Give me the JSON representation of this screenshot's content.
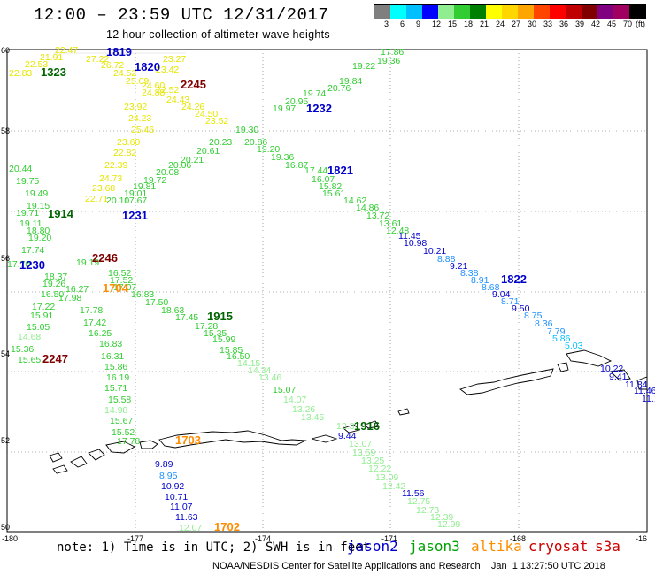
{
  "header": {
    "title": "12:00 – 23:59 UTC 12/31/2017",
    "subtitle": "12 hour collection of altimeter wave heights"
  },
  "color_scale": {
    "colors": [
      "#7f7f7f",
      "#00ffff",
      "#00bfff",
      "#0000ff",
      "#90ee90",
      "#32cd32",
      "#008000",
      "#ffff00",
      "#ffd700",
      "#ffa500",
      "#ff4500",
      "#ff0000",
      "#c00000",
      "#800000",
      "#800080",
      "#a00060",
      "#000000"
    ],
    "labels": [
      "3",
      "6",
      "9",
      "12",
      "15",
      "18",
      "21",
      "24",
      "27",
      "30",
      "33",
      "36",
      "39",
      "42",
      "45",
      "70",
      "(ft)"
    ]
  },
  "axes": {
    "y_labels": [
      "60",
      "58",
      "56",
      "54",
      "52",
      "50"
    ],
    "x_labels": [
      "-180",
      "-177",
      "-174",
      "-171",
      "-168",
      "-16"
    ]
  },
  "track_times": [
    {
      "text": "1819",
      "color": "#0000cc"
    },
    {
      "text": "1820",
      "color": "#0000cc"
    },
    {
      "text": "1323",
      "color": "#006400"
    },
    {
      "text": "2245",
      "color": "#800000"
    },
    {
      "text": "1232",
      "color": "#0000cc"
    },
    {
      "text": "1821",
      "color": "#0000cc"
    },
    {
      "text": "1914",
      "color": "#006400"
    },
    {
      "text": "1231",
      "color": "#0000cc"
    },
    {
      "text": "2246",
      "color": "#800000"
    },
    {
      "text": "1230",
      "color": "#0000cc"
    },
    {
      "text": "1704",
      "color": "#ff8c00"
    },
    {
      "text": "1822",
      "color": "#0000cc"
    },
    {
      "text": "1915",
      "color": "#006400"
    },
    {
      "text": "2247",
      "color": "#800000"
    },
    {
      "text": "1916",
      "color": "#006400"
    },
    {
      "text": "1703",
      "color": "#ff8c00"
    },
    {
      "text": "1702",
      "color": "#ff8c00"
    }
  ],
  "wave_values": [
    {
      "v": "22.47",
      "c": "#e6e600"
    },
    {
      "v": "21.91",
      "c": "#e6e600"
    },
    {
      "v": "22.53",
      "c": "#e6e600"
    },
    {
      "v": "22.83",
      "c": "#e6e600"
    },
    {
      "v": "27.22",
      "c": "#e6e600"
    },
    {
      "v": "26.72",
      "c": "#e6e600"
    },
    {
      "v": "24.52",
      "c": "#e6e600"
    },
    {
      "v": "25.09",
      "c": "#e6e600"
    },
    {
      "v": "24.60",
      "c": "#e6e600"
    },
    {
      "v": "24.88",
      "c": "#e6e600"
    },
    {
      "v": "22.52",
      "c": "#e6e600"
    },
    {
      "v": "23.42",
      "c": "#e6e600"
    },
    {
      "v": "23.27",
      "c": "#e6e600"
    },
    {
      "v": "24.43",
      "c": "#e6e600"
    },
    {
      "v": "23.92",
      "c": "#e6e600"
    },
    {
      "v": "24.26",
      "c": "#e6e600"
    },
    {
      "v": "24.50",
      "c": "#e6e600"
    },
    {
      "v": "24.23",
      "c": "#e6e600"
    },
    {
      "v": "23.52",
      "c": "#e6e600"
    },
    {
      "v": "25.46",
      "c": "#e6e600"
    },
    {
      "v": "23.60",
      "c": "#e6e600"
    },
    {
      "v": "22.82",
      "c": "#e6e600"
    },
    {
      "v": "22.39",
      "c": "#e6e600"
    },
    {
      "v": "24.73",
      "c": "#e6e600"
    },
    {
      "v": "23.68",
      "c": "#e6e600"
    },
    {
      "v": "22.71",
      "c": "#e6e600"
    },
    {
      "v": "17.86",
      "c": "#32cd32"
    },
    {
      "v": "19.36",
      "c": "#32cd32"
    },
    {
      "v": "19.22",
      "c": "#32cd32"
    },
    {
      "v": "19.84",
      "c": "#32cd32"
    },
    {
      "v": "20.76",
      "c": "#32cd32"
    },
    {
      "v": "19.74",
      "c": "#32cd32"
    },
    {
      "v": "20.95",
      "c": "#32cd32"
    },
    {
      "v": "19.97",
      "c": "#32cd32"
    },
    {
      "v": "19.30",
      "c": "#32cd32"
    },
    {
      "v": "20.23",
      "c": "#32cd32"
    },
    {
      "v": "20.86",
      "c": "#32cd32"
    },
    {
      "v": "20.61",
      "c": "#32cd32"
    },
    {
      "v": "19.20",
      "c": "#32cd32"
    },
    {
      "v": "20.21",
      "c": "#32cd32"
    },
    {
      "v": "20.06",
      "c": "#32cd32"
    },
    {
      "v": "19.36",
      "c": "#32cd32"
    },
    {
      "v": "20.08",
      "c": "#32cd32"
    },
    {
      "v": "16.87",
      "c": "#32cd32"
    },
    {
      "v": "19.72",
      "c": "#32cd32"
    },
    {
      "v": "17.44",
      "c": "#32cd32"
    },
    {
      "v": "19.81",
      "c": "#32cd32"
    },
    {
      "v": "16.07",
      "c": "#32cd32"
    },
    {
      "v": "15.82",
      "c": "#32cd32"
    },
    {
      "v": "19.01",
      "c": "#32cd32"
    },
    {
      "v": "15.61",
      "c": "#32cd32"
    },
    {
      "v": "20.10",
      "c": "#32cd32"
    },
    {
      "v": "17.67",
      "c": "#32cd32"
    },
    {
      "v": "14.62",
      "c": "#32cd32"
    },
    {
      "v": "14.86",
      "c": "#32cd32"
    },
    {
      "v": "13.72",
      "c": "#32cd32"
    },
    {
      "v": "13.61",
      "c": "#32cd32"
    },
    {
      "v": "12.48",
      "c": "#32cd32"
    },
    {
      "v": "20.44",
      "c": "#32cd32"
    },
    {
      "v": "19.75",
      "c": "#32cd32"
    },
    {
      "v": "19.49",
      "c": "#32cd32"
    },
    {
      "v": "19.15",
      "c": "#32cd32"
    },
    {
      "v": "19.71",
      "c": "#32cd32"
    },
    {
      "v": "19.11",
      "c": "#32cd32"
    },
    {
      "v": "18.80",
      "c": "#32cd32"
    },
    {
      "v": "19.20",
      "c": "#32cd32"
    },
    {
      "v": "17.74",
      "c": "#32cd32"
    },
    {
      "v": "17.70",
      "c": "#32cd32"
    },
    {
      "v": "19.19",
      "c": "#32cd32"
    },
    {
      "v": "18.37",
      "c": "#32cd32"
    },
    {
      "v": "19.26",
      "c": "#32cd32"
    },
    {
      "v": "16.52",
      "c": "#32cd32"
    },
    {
      "v": "17.52",
      "c": "#32cd32"
    },
    {
      "v": "16.27",
      "c": "#32cd32"
    },
    {
      "v": "16.50",
      "c": "#32cd32"
    },
    {
      "v": "17.07",
      "c": "#32cd32"
    },
    {
      "v": "16.83",
      "c": "#32cd32"
    },
    {
      "v": "17.22",
      "c": "#32cd32"
    },
    {
      "v": "17.98",
      "c": "#32cd32"
    },
    {
      "v": "17.50",
      "c": "#32cd32"
    },
    {
      "v": "15.91",
      "c": "#32cd32"
    },
    {
      "v": "17.78",
      "c": "#32cd32"
    },
    {
      "v": "18.63",
      "c": "#32cd32"
    },
    {
      "v": "15.05",
      "c": "#32cd32"
    },
    {
      "v": "17.42",
      "c": "#32cd32"
    },
    {
      "v": "17.45",
      "c": "#32cd32"
    },
    {
      "v": "14.68",
      "c": "#90ee90"
    },
    {
      "v": "17.28",
      "c": "#32cd32"
    },
    {
      "v": "16.25",
      "c": "#32cd32"
    },
    {
      "v": "15.35",
      "c": "#32cd32"
    },
    {
      "v": "15.36",
      "c": "#32cd32"
    },
    {
      "v": "16.83",
      "c": "#32cd32"
    },
    {
      "v": "15.99",
      "c": "#32cd32"
    },
    {
      "v": "15.65",
      "c": "#32cd32"
    },
    {
      "v": "16.31",
      "c": "#32cd32"
    },
    {
      "v": "15.85",
      "c": "#32cd32"
    },
    {
      "v": "16.50",
      "c": "#32cd32"
    },
    {
      "v": "14.15",
      "c": "#90ee90"
    },
    {
      "v": "15.86",
      "c": "#32cd32"
    },
    {
      "v": "14.34",
      "c": "#90ee90"
    },
    {
      "v": "16.19",
      "c": "#32cd32"
    },
    {
      "v": "13.46",
      "c": "#90ee90"
    },
    {
      "v": "15.71",
      "c": "#32cd32"
    },
    {
      "v": "15.07",
      "c": "#32cd32"
    },
    {
      "v": "15.58",
      "c": "#32cd32"
    },
    {
      "v": "14.07",
      "c": "#90ee90"
    },
    {
      "v": "14.98",
      "c": "#90ee90"
    },
    {
      "v": "13.26",
      "c": "#90ee90"
    },
    {
      "v": "15.67",
      "c": "#32cd32"
    },
    {
      "v": "13.45",
      "c": "#90ee90"
    },
    {
      "v": "15.52",
      "c": "#32cd32"
    },
    {
      "v": "12.37",
      "c": "#90ee90"
    },
    {
      "v": "17.78",
      "c": "#32cd32"
    },
    {
      "v": "9.44",
      "c": "#0000cd"
    },
    {
      "v": "13.07",
      "c": "#90ee90"
    },
    {
      "v": "13.59",
      "c": "#90ee90"
    },
    {
      "v": "13.25",
      "c": "#90ee90"
    },
    {
      "v": "12.22",
      "c": "#90ee90"
    },
    {
      "v": "13.09",
      "c": "#90ee90"
    },
    {
      "v": "12.42",
      "c": "#90ee90"
    },
    {
      "v": "11.56",
      "c": "#0000cd"
    },
    {
      "v": "12.75",
      "c": "#90ee90"
    },
    {
      "v": "12.73",
      "c": "#90ee90"
    },
    {
      "v": "12.39",
      "c": "#90ee90"
    },
    {
      "v": "12.99",
      "c": "#90ee90"
    },
    {
      "v": "11.45",
      "c": "#0000cd"
    },
    {
      "v": "10.98",
      "c": "#0000cd"
    },
    {
      "v": "10.21",
      "c": "#0000cd"
    },
    {
      "v": "8.88",
      "c": "#1e90ff"
    },
    {
      "v": "9.21",
      "c": "#0000cd"
    },
    {
      "v": "8.38",
      "c": "#1e90ff"
    },
    {
      "v": "8.91",
      "c": "#1e90ff"
    },
    {
      "v": "8.68",
      "c": "#1e90ff"
    },
    {
      "v": "9.04",
      "c": "#0000cd"
    },
    {
      "v": "8.71",
      "c": "#1e90ff"
    },
    {
      "v": "9.50",
      "c": "#0000cd"
    },
    {
      "v": "8.75",
      "c": "#1e90ff"
    },
    {
      "v": "8.36",
      "c": "#1e90ff"
    },
    {
      "v": "7.79",
      "c": "#1e90ff"
    },
    {
      "v": "5.86",
      "c": "#00bfff"
    },
    {
      "v": "5.03",
      "c": "#00bfff"
    },
    {
      "v": "10.22",
      "c": "#0000cd"
    },
    {
      "v": "9.41",
      "c": "#0000cd"
    },
    {
      "v": "11.84",
      "c": "#0000cd"
    },
    {
      "v": "11.46",
      "c": "#0000cd"
    },
    {
      "v": "11.1",
      "c": "#0000cd"
    },
    {
      "v": "9.89",
      "c": "#0000cd"
    },
    {
      "v": "8.95",
      "c": "#1e90ff"
    },
    {
      "v": "10.92",
      "c": "#0000cd"
    },
    {
      "v": "10.71",
      "c": "#0000cd"
    },
    {
      "v": "11.07",
      "c": "#0000cd"
    },
    {
      "v": "11.63",
      "c": "#0000cd"
    },
    {
      "v": "12.07",
      "c": "#90ee90"
    }
  ],
  "footer": {
    "note": "note: 1) Time is in UTC; 2) SWH is in feet",
    "satellites": [
      {
        "name": "jason2",
        "color": "#0000cc"
      },
      {
        "name": "jason3",
        "color": "#00a000"
      },
      {
        "name": "altika",
        "color": "#ff8c00"
      },
      {
        "name": "cryosat",
        "color": "#cc0000"
      },
      {
        "name": "s3a",
        "color": "#cc0000"
      }
    ],
    "credit": "NOAA/NESDIS Center for Satellite Applications and Research    Jan  1 13:27:50 UTC 2018"
  }
}
